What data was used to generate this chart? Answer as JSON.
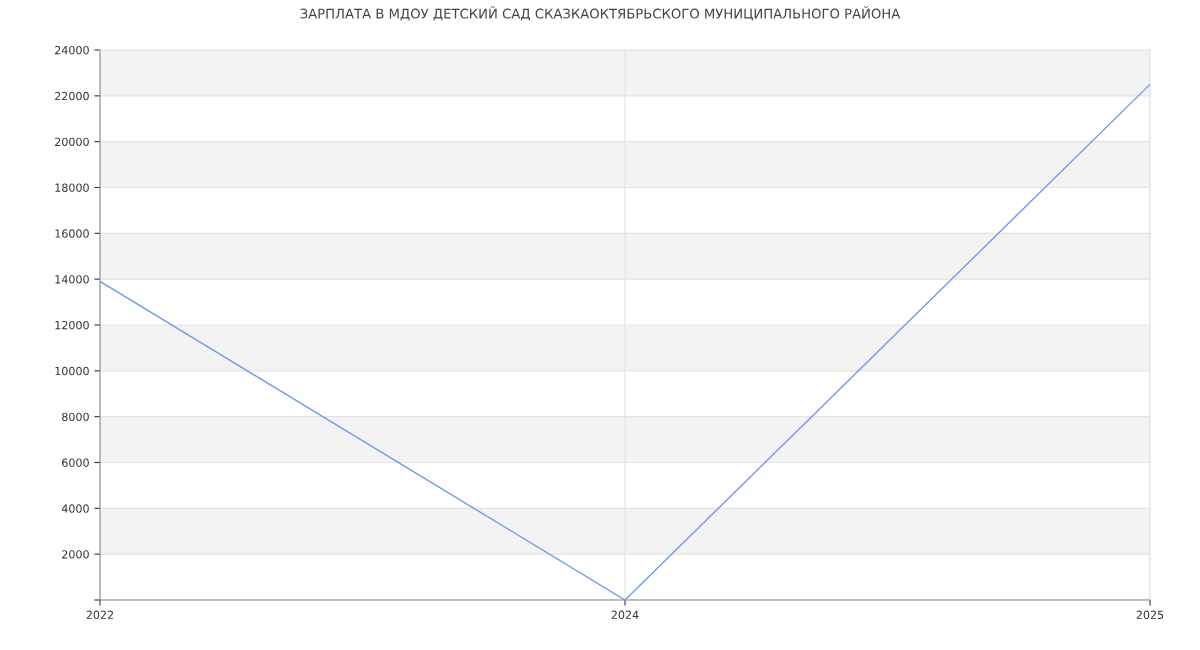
{
  "chart_data": {
    "type": "line",
    "title": "ЗАРПЛАТА В МДОУ ДЕТСКИЙ САД СКАЗКАОКТЯБРЬСКОГО МУНИЦИПАЛЬНОГО РАЙОНА",
    "categories": [
      "2022",
      "2024",
      "2025"
    ],
    "series": [
      {
        "color": "#6f9af0",
        "values": [
          13900,
          0,
          22500
        ]
      }
    ],
    "ylim": [
      0,
      24000
    ],
    "yticks": [
      {
        "value": 0,
        "label": null
      },
      2000,
      4000,
      6000,
      8000,
      10000,
      12000,
      14000,
      16000,
      18000,
      20000,
      22000,
      24000
    ],
    "grid": true,
    "legend": false,
    "marker": "none",
    "line_style": "solid"
  }
}
